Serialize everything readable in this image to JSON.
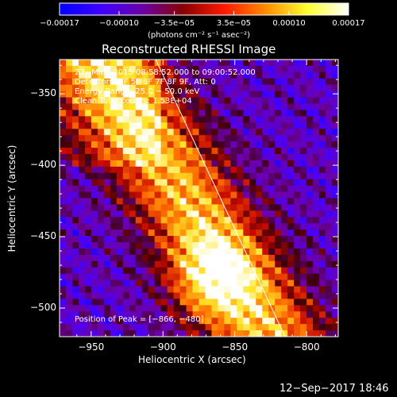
{
  "chart_data": {
    "type": "heatmap",
    "title": "Reconstructed RHESSI Image",
    "xlabel": "Heliocentric X (arcsec)",
    "ylabel": "Heliocentric Y (arcsec)",
    "xlim": [
      -972,
      -778
    ],
    "ylim": [
      -520,
      -326
    ],
    "x_ticks": [
      "−950",
      "−900",
      "−850",
      "−800"
    ],
    "x_tick_values": [
      -950,
      -900,
      -850,
      -800
    ],
    "y_ticks": [
      "−350",
      "−400",
      "−450",
      "−500"
    ],
    "y_tick_values": [
      -350,
      -400,
      -450,
      -500
    ],
    "colorbar": {
      "ticks": [
        "−0.00017",
        "−0.00010",
        "−3.5e−05",
        "3.5e−05",
        "0.00010",
        "0.00017"
      ],
      "tick_values": [
        -0.00017,
        -0.0001,
        -3.5e-05,
        3.5e-05,
        0.0001,
        0.00017
      ],
      "range": [
        -0.00017,
        0.00017
      ],
      "units": "(photons cm⁻² s⁻¹ asec⁻²)",
      "colors": [
        "#0000ff",
        "#3f00ff",
        "#6a00a8",
        "#8a0000",
        "#ff1a00",
        "#ff8c00",
        "#ffff30",
        "#ffffff"
      ]
    },
    "annotations": {
      "time": "23−Mar−2015 08:58:52.000 to 09:00:52.000",
      "detectors": "Detectors: 3F 5F 6F 7F 8F 9F, Att: 0",
      "energy": "Energy Range: 25.0 − 50.0 keV",
      "clean": "Clean    Total counts: 1.53E+04",
      "peak": "Position of Peak = [−866, −480]"
    },
    "peak_position": [
      -866,
      -480
    ],
    "limb_line": [
      [
        -905,
        -326
      ],
      [
        -815,
        -520
      ]
    ]
  },
  "footer": {
    "timestamp": "12−Sep−2017 18:46"
  }
}
